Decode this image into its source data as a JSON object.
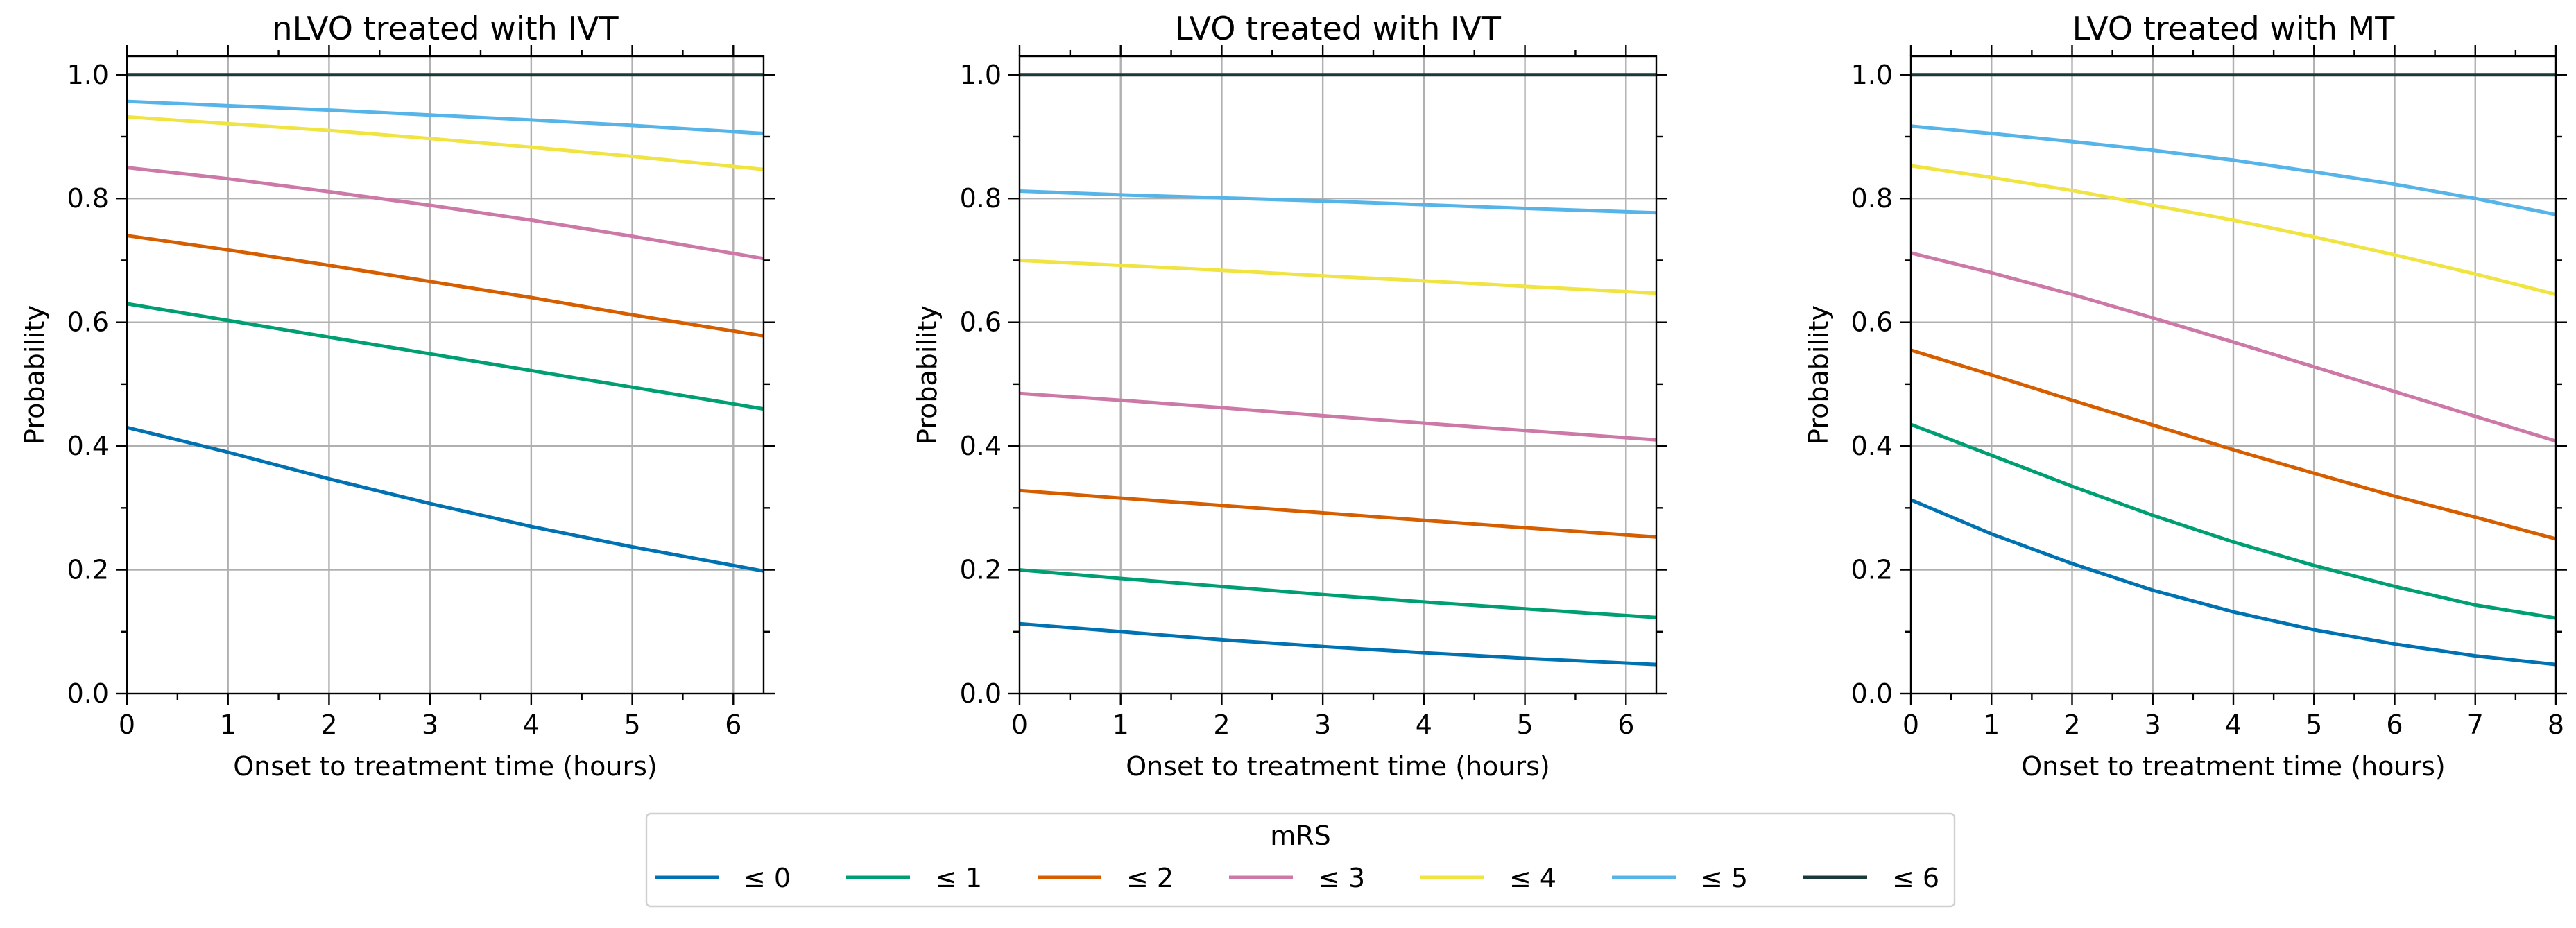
{
  "figure": {
    "legend_title": "mRS",
    "legend_placement": "bottom-center",
    "grid": true
  },
  "legend": [
    {
      "label": "≤ 0",
      "color": "#0072B2"
    },
    {
      "label": "≤ 1",
      "color": "#009E73"
    },
    {
      "label": "≤ 2",
      "color": "#D55E00"
    },
    {
      "label": "≤ 3",
      "color": "#CC79A7"
    },
    {
      "label": "≤ 4",
      "color": "#F0E442"
    },
    {
      "label": "≤ 5",
      "color": "#56B4E9"
    },
    {
      "label": "≤ 6",
      "color": "#1A3A3A"
    }
  ],
  "chart_data": [
    {
      "type": "line",
      "title": "nLVO treated with IVT",
      "xlabel": "Onset to treatment time (hours)",
      "ylabel": "Probability",
      "xlim": [
        0,
        6.3
      ],
      "ylim": [
        0,
        1.03
      ],
      "xticks": [
        "0",
        "1",
        "2",
        "3",
        "4",
        "5",
        "6"
      ],
      "yticks": [
        "0.0",
        "0.2",
        "0.4",
        "0.6",
        "0.8",
        "1.0"
      ],
      "x": [
        0,
        1,
        2,
        3,
        4,
        5,
        6.3
      ],
      "series": [
        {
          "name": "≤ 0",
          "values": [
            0.43,
            0.39,
            0.347,
            0.307,
            0.27,
            0.237,
            0.198
          ]
        },
        {
          "name": "≤ 1",
          "values": [
            0.63,
            0.603,
            0.576,
            0.549,
            0.522,
            0.495,
            0.46
          ]
        },
        {
          "name": "≤ 2",
          "values": [
            0.74,
            0.717,
            0.692,
            0.666,
            0.64,
            0.612,
            0.578
          ]
        },
        {
          "name": "≤ 3",
          "values": [
            0.85,
            0.832,
            0.811,
            0.789,
            0.765,
            0.739,
            0.703
          ]
        },
        {
          "name": "≤ 4",
          "values": [
            0.932,
            0.921,
            0.91,
            0.897,
            0.883,
            0.868,
            0.847
          ]
        },
        {
          "name": "≤ 5",
          "values": [
            0.957,
            0.95,
            0.943,
            0.935,
            0.927,
            0.918,
            0.905
          ]
        },
        {
          "name": "≤ 6",
          "values": [
            1.0,
            1.0,
            1.0,
            1.0,
            1.0,
            1.0,
            1.0
          ]
        }
      ]
    },
    {
      "type": "line",
      "title": "LVO treated with IVT",
      "xlabel": "Onset to treatment time (hours)",
      "ylabel": "Probability",
      "xlim": [
        0,
        6.3
      ],
      "ylim": [
        0,
        1.03
      ],
      "xticks": [
        "0",
        "1",
        "2",
        "3",
        "4",
        "5",
        "6"
      ],
      "yticks": [
        "0.0",
        "0.2",
        "0.4",
        "0.6",
        "0.8",
        "1.0"
      ],
      "x": [
        0,
        1,
        2,
        3,
        4,
        5,
        6.3
      ],
      "series": [
        {
          "name": "≤ 0",
          "values": [
            0.113,
            0.1,
            0.087,
            0.076,
            0.066,
            0.057,
            0.047
          ]
        },
        {
          "name": "≤ 1",
          "values": [
            0.2,
            0.186,
            0.173,
            0.16,
            0.148,
            0.137,
            0.123
          ]
        },
        {
          "name": "≤ 2",
          "values": [
            0.328,
            0.316,
            0.304,
            0.292,
            0.28,
            0.268,
            0.253
          ]
        },
        {
          "name": "≤ 3",
          "values": [
            0.485,
            0.474,
            0.462,
            0.449,
            0.437,
            0.425,
            0.41
          ]
        },
        {
          "name": "≤ 4",
          "values": [
            0.7,
            0.692,
            0.684,
            0.675,
            0.667,
            0.658,
            0.647
          ]
        },
        {
          "name": "≤ 5",
          "values": [
            0.812,
            0.806,
            0.801,
            0.796,
            0.79,
            0.784,
            0.777
          ]
        },
        {
          "name": "≤ 6",
          "values": [
            1.0,
            1.0,
            1.0,
            1.0,
            1.0,
            1.0,
            1.0
          ]
        }
      ]
    },
    {
      "type": "line",
      "title": "LVO treated with MT",
      "xlabel": "Onset to treatment time (hours)",
      "ylabel": "Probability",
      "xlim": [
        0,
        8
      ],
      "ylim": [
        0,
        1.03
      ],
      "xticks": [
        "0",
        "1",
        "2",
        "3",
        "4",
        "5",
        "6",
        "7",
        "8"
      ],
      "yticks": [
        "0.0",
        "0.2",
        "0.4",
        "0.6",
        "0.8",
        "1.0"
      ],
      "x": [
        0,
        1,
        2,
        3,
        4,
        5,
        6,
        7,
        8
      ],
      "series": [
        {
          "name": "≤ 0",
          "values": [
            0.313,
            0.258,
            0.21,
            0.167,
            0.132,
            0.103,
            0.08,
            0.061,
            0.047
          ]
        },
        {
          "name": "≤ 1",
          "values": [
            0.435,
            0.385,
            0.335,
            0.288,
            0.245,
            0.207,
            0.173,
            0.143,
            0.122
          ]
        },
        {
          "name": "≤ 2",
          "values": [
            0.555,
            0.515,
            0.474,
            0.434,
            0.394,
            0.356,
            0.319,
            0.285,
            0.25
          ]
        },
        {
          "name": "≤ 3",
          "values": [
            0.712,
            0.68,
            0.645,
            0.607,
            0.568,
            0.528,
            0.488,
            0.448,
            0.408
          ]
        },
        {
          "name": "≤ 4",
          "values": [
            0.853,
            0.834,
            0.813,
            0.789,
            0.765,
            0.738,
            0.709,
            0.678,
            0.645
          ]
        },
        {
          "name": "≤ 5",
          "values": [
            0.917,
            0.905,
            0.892,
            0.878,
            0.862,
            0.843,
            0.823,
            0.8,
            0.774
          ]
        },
        {
          "name": "≤ 6",
          "values": [
            1.0,
            1.0,
            1.0,
            1.0,
            1.0,
            1.0,
            1.0,
            1.0,
            1.0
          ]
        }
      ]
    }
  ]
}
